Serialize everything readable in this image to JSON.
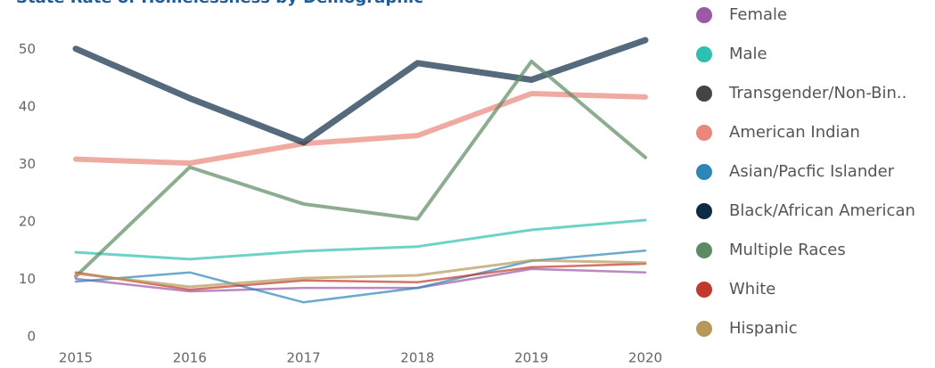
{
  "chart_data": {
    "type": "line",
    "title": "State Rate of Homelessness by Demographic",
    "categories": [
      "2015",
      "2016",
      "2017",
      "2018",
      "2019",
      "2020"
    ],
    "ylim": [
      0,
      53
    ],
    "yticks": [
      0,
      10,
      20,
      30,
      40,
      50
    ],
    "grid": false,
    "legend": "right",
    "series": [
      {
        "name": "Female",
        "color": "#9b59a6",
        "width": 2.5,
        "values": [
          10.1,
          7.9,
          8.5,
          8.5,
          11.8,
          11.2
        ]
      },
      {
        "name": "Male",
        "color": "#2fbfb0",
        "width": 3,
        "values": [
          14.7,
          13.5,
          14.9,
          15.7,
          18.6,
          20.3
        ]
      },
      {
        "name": "Transgender/Non-Bin..",
        "color": "#444444",
        "width": 2.5,
        "values": [
          null,
          null,
          null,
          null,
          null,
          null
        ]
      },
      {
        "name": "American Indian",
        "color": "#e8877a",
        "width": 6,
        "values": [
          30.9,
          30.2,
          33.6,
          35.0,
          42.3,
          41.7
        ]
      },
      {
        "name": "Asian/Pacfic Islander",
        "color": "#2d86b8",
        "width": 2.5,
        "values": [
          9.6,
          11.2,
          6.0,
          8.5,
          13.2,
          15.0
        ]
      },
      {
        "name": "Black/African American",
        "color": "#0d2b45",
        "width": 7,
        "values": [
          50.1,
          41.5,
          33.8,
          47.6,
          44.7,
          51.6
        ]
      },
      {
        "name": "Multiple Races",
        "color": "#5d8a62",
        "width": 4,
        "values": [
          10.5,
          29.5,
          23.1,
          20.5,
          47.9,
          31.2
        ]
      },
      {
        "name": "White",
        "color": "#c0392b",
        "width": 2.5,
        "values": [
          11.2,
          8.2,
          9.8,
          9.5,
          12.1,
          12.7
        ]
      },
      {
        "name": "Hispanic",
        "color": "#b8975a",
        "width": 3,
        "values": [
          11.0,
          8.7,
          10.2,
          10.7,
          13.3,
          12.9
        ]
      }
    ]
  }
}
